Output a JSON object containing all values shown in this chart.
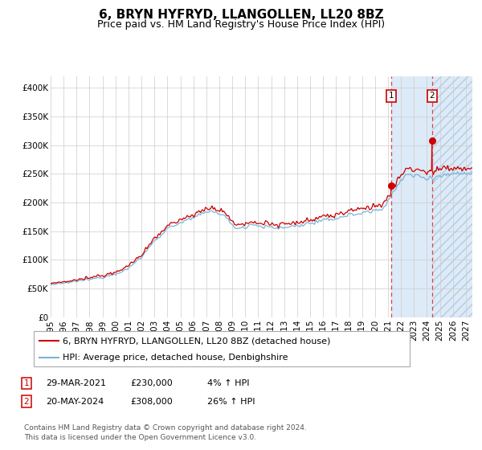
{
  "title": "6, BRYN HYFRYD, LLANGOLLEN, LL20 8BZ",
  "subtitle": "Price paid vs. HM Land Registry's House Price Index (HPI)",
  "ylim": [
    0,
    420000
  ],
  "yticks": [
    0,
    50000,
    100000,
    150000,
    200000,
    250000,
    300000,
    350000,
    400000
  ],
  "ytick_labels": [
    "£0",
    "£50K",
    "£100K",
    "£150K",
    "£200K",
    "£250K",
    "£300K",
    "£350K",
    "£400K"
  ],
  "x_start_year": 1995.0,
  "x_end_year": 2027.5,
  "xtick_years": [
    1995,
    1996,
    1997,
    1998,
    1999,
    2000,
    2001,
    2002,
    2003,
    2004,
    2005,
    2006,
    2007,
    2008,
    2009,
    2010,
    2011,
    2012,
    2013,
    2014,
    2015,
    2016,
    2017,
    2018,
    2019,
    2020,
    2021,
    2022,
    2023,
    2024,
    2025,
    2026,
    2027
  ],
  "sale1_date": 2021.24,
  "sale1_price": 230000,
  "sale2_date": 2024.38,
  "sale2_price": 308000,
  "shaded_start": 2021.24,
  "shaded_end": 2024.38,
  "hatched_start": 2024.38,
  "hatched_end": 2027.5,
  "hpi_color": "#7ab5d8",
  "property_color": "#cc0000",
  "grid_color": "#cccccc",
  "bg_color": "#ffffff",
  "shaded_color": "#ddeaf7",
  "hatched_color": "#ddeaf7",
  "legend1_text": "6, BRYN HYFRYD, LLANGOLLEN, LL20 8BZ (detached house)",
  "legend2_text": "HPI: Average price, detached house, Denbighshire",
  "sale_info": [
    {
      "num": "1",
      "date": "29-MAR-2021",
      "price": "£230,000",
      "pct": "4% ↑ HPI"
    },
    {
      "num": "2",
      "date": "20-MAY-2024",
      "price": "£308,000",
      "pct": "26% ↑ HPI"
    }
  ],
  "footnote": "Contains HM Land Registry data © Crown copyright and database right 2024.\nThis data is licensed under the Open Government Licence v3.0.",
  "title_fontsize": 11,
  "subtitle_fontsize": 9,
  "tick_fontsize": 7.5,
  "legend_fontsize": 8,
  "sale_info_fontsize": 8,
  "footnote_fontsize": 6.5
}
